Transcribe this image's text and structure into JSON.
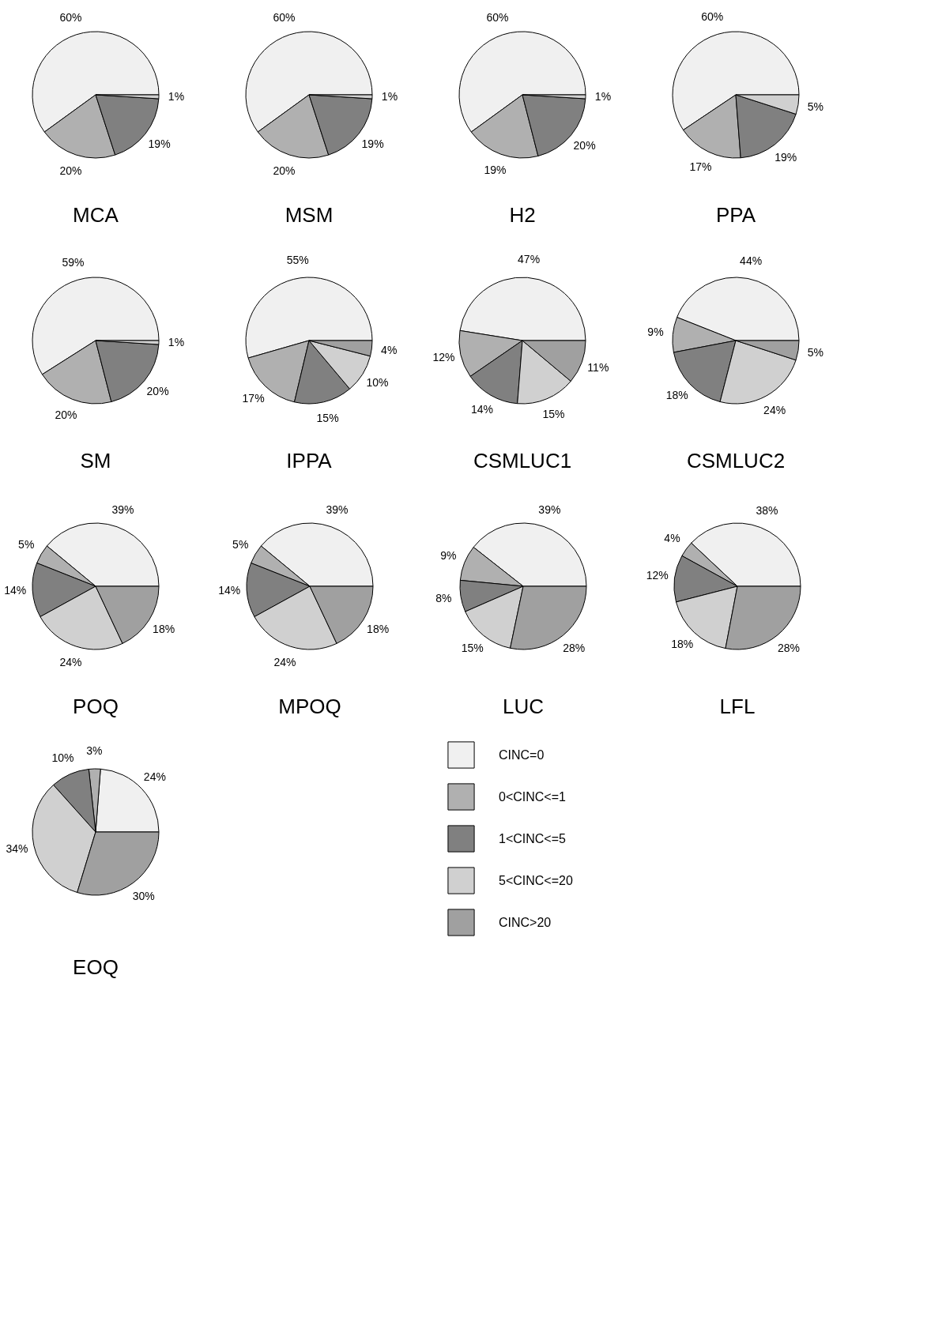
{
  "chart_data": [
    {
      "type": "pie",
      "title": "MCA",
      "values": [
        60,
        20,
        19,
        1
      ],
      "value_labels": [
        "60%",
        "20%",
        "19%",
        "1%"
      ],
      "colors": [
        "#f0f0f0",
        "#b0b0b0",
        "#808080",
        "#d0d0d0"
      ]
    },
    {
      "type": "pie",
      "title": "MSM",
      "values": [
        60,
        20,
        19,
        1
      ],
      "value_labels": [
        "60%",
        "20%",
        "19%",
        "1%"
      ],
      "colors": [
        "#f0f0f0",
        "#b0b0b0",
        "#808080",
        "#d0d0d0"
      ]
    },
    {
      "type": "pie",
      "title": "H2",
      "values": [
        60,
        19,
        20,
        1
      ],
      "value_labels": [
        "60%",
        "19%",
        "20%",
        "1%"
      ],
      "colors": [
        "#f0f0f0",
        "#b0b0b0",
        "#808080",
        "#d0d0d0"
      ]
    },
    {
      "type": "pie",
      "title": "PPA",
      "values": [
        60,
        17,
        19,
        5
      ],
      "value_labels": [
        "60%",
        "17%",
        "19%",
        "5%"
      ],
      "colors": [
        "#f0f0f0",
        "#b0b0b0",
        "#808080",
        "#d0d0d0"
      ]
    },
    {
      "type": "pie",
      "title": "SM",
      "values": [
        59,
        20,
        20,
        1
      ],
      "value_labels": [
        "59%",
        "20%",
        "20%",
        "1%"
      ],
      "colors": [
        "#f0f0f0",
        "#b0b0b0",
        "#808080",
        "#d0d0d0"
      ]
    },
    {
      "type": "pie",
      "title": "IPPA",
      "values": [
        55,
        17,
        15,
        10,
        4
      ],
      "value_labels": [
        "55%",
        "17%",
        "15%",
        "10%",
        "4%"
      ],
      "colors": [
        "#f0f0f0",
        "#b0b0b0",
        "#808080",
        "#d0d0d0",
        "#a0a0a0"
      ]
    },
    {
      "type": "pie",
      "title": "CSMLUC1",
      "values": [
        47,
        12,
        14,
        15,
        11
      ],
      "value_labels": [
        "47%",
        "12%",
        "14%",
        "15%",
        "11%"
      ],
      "colors": [
        "#f0f0f0",
        "#b0b0b0",
        "#808080",
        "#d0d0d0",
        "#a0a0a0"
      ]
    },
    {
      "type": "pie",
      "title": "CSMLUC2",
      "values": [
        44,
        9,
        18,
        24,
        5
      ],
      "value_labels": [
        "44%",
        "9%",
        "18%",
        "24%",
        "5%"
      ],
      "colors": [
        "#f0f0f0",
        "#b0b0b0",
        "#808080",
        "#d0d0d0",
        "#a0a0a0"
      ]
    },
    {
      "type": "pie",
      "title": "POQ",
      "values": [
        39,
        5,
        14,
        24,
        18
      ],
      "value_labels": [
        "39%",
        "5%",
        "14%",
        "24%",
        "18%"
      ],
      "colors": [
        "#f0f0f0",
        "#b0b0b0",
        "#808080",
        "#d0d0d0",
        "#a0a0a0"
      ]
    },
    {
      "type": "pie",
      "title": "MPOQ",
      "values": [
        39,
        5,
        14,
        24,
        18
      ],
      "value_labels": [
        "39%",
        "5%",
        "14%",
        "24%",
        "18%"
      ],
      "colors": [
        "#f0f0f0",
        "#b0b0b0",
        "#808080",
        "#d0d0d0",
        "#a0a0a0"
      ]
    },
    {
      "type": "pie",
      "title": "LUC",
      "values": [
        39,
        9,
        8,
        15,
        28
      ],
      "value_labels": [
        "39%",
        "9%",
        "8%",
        "15%",
        "28%"
      ],
      "colors": [
        "#f0f0f0",
        "#b0b0b0",
        "#808080",
        "#d0d0d0",
        "#a0a0a0"
      ]
    },
    {
      "type": "pie",
      "title": "LFL",
      "values": [
        38,
        4,
        12,
        18,
        28
      ],
      "value_labels": [
        "38%",
        "4%",
        "12%",
        "18%",
        "28%"
      ],
      "colors": [
        "#f0f0f0",
        "#b0b0b0",
        "#808080",
        "#d0d0d0",
        "#a0a0a0"
      ]
    },
    {
      "type": "pie",
      "title": "EOQ",
      "categories": [
        "CINC=0",
        "0<CINC<=1",
        "1<CINC<=5",
        "5<CINC<=20",
        "CINC>20"
      ],
      "values": [
        24,
        3,
        10,
        34,
        30
      ],
      "value_labels": [
        "24%",
        "3%",
        "10%",
        "34%",
        "30%"
      ],
      "colors": [
        "#f0f0f0",
        "#b0b0b0",
        "#808080",
        "#d0d0d0",
        "#a0a0a0"
      ],
      "legend": "right"
    }
  ]
}
